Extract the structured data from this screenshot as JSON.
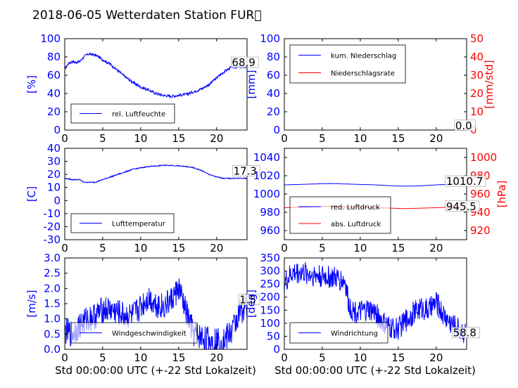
{
  "title": "2018-06-05 Wetterdaten Station FUR\u0000",
  "xlabel": "Std 00:00:00 UTC (+-22 Std Lokalzeit)",
  "colors": {
    "primary": "#0000ff",
    "secondary": "#ff0000"
  },
  "chart_data": [
    {
      "id": "humidity",
      "type": "line",
      "xlim": [
        0,
        24
      ],
      "ylim": [
        0,
        100
      ],
      "xticks": [
        0,
        5,
        10,
        15,
        20
      ],
      "yticks": [
        0,
        20,
        40,
        60,
        80,
        100
      ],
      "ylabel": "[%]",
      "legend_position": "lower-left",
      "series": [
        {
          "name": "rel. Luftfeuchte",
          "color": "#0000ff",
          "noise": 1.5,
          "x": [
            0,
            0.5,
            1,
            1.5,
            2,
            2.5,
            3,
            3.5,
            4,
            4.5,
            5,
            6,
            7,
            8,
            9,
            10,
            11,
            12,
            13,
            14,
            15,
            16,
            17,
            18,
            19,
            20,
            21,
            22,
            23,
            24
          ],
          "y": [
            67,
            73,
            75,
            74,
            75,
            80,
            83,
            83,
            82,
            80,
            77,
            72,
            65,
            58,
            52,
            47,
            44,
            40,
            38,
            37,
            38,
            39,
            42,
            45,
            50,
            57,
            64,
            69,
            69,
            69
          ]
        }
      ],
      "annotation": {
        "x": 22,
        "text": "68,9"
      }
    },
    {
      "id": "precipitation",
      "type": "line",
      "xlim": [
        0,
        24
      ],
      "ylim": [
        0,
        100
      ],
      "xticks": [
        0,
        5,
        10,
        15,
        20
      ],
      "yticks": [
        0,
        20,
        40,
        60,
        80,
        100
      ],
      "ylabel": "[mm]",
      "y2lim": [
        0,
        50
      ],
      "y2ticks": [
        0,
        10,
        20,
        30,
        40,
        50
      ],
      "y2label": "[mm/std]",
      "legend_position": "upper-left",
      "series": [
        {
          "name": "kum. Niederschlag",
          "color": "#0000ff",
          "axis": "left",
          "noise": 0,
          "x": [
            0,
            24
          ],
          "y": [
            0,
            0
          ]
        },
        {
          "name": "Niederschlagsrate",
          "color": "#ff0000",
          "axis": "right",
          "noise": 0,
          "x": [
            0,
            24
          ],
          "y": [
            0,
            0
          ]
        }
      ],
      "annotation": {
        "x": 22.5,
        "text": "0.0"
      }
    },
    {
      "id": "temperature",
      "type": "line",
      "xlim": [
        0,
        24
      ],
      "ylim": [
        -30,
        40
      ],
      "xticks": [
        0,
        5,
        10,
        15,
        20
      ],
      "yticks": [
        -30,
        -20,
        -10,
        0,
        10,
        20,
        30,
        40
      ],
      "ylabel": "[C]",
      "legend_position": "lower-left",
      "series": [
        {
          "name": "Lufttemperatur",
          "color": "#0000ff",
          "noise": 0.4,
          "x": [
            0,
            1,
            2,
            2.5,
            3,
            4,
            5,
            6,
            7,
            8,
            9,
            10,
            11,
            12,
            13,
            14,
            15,
            16,
            17,
            18,
            19,
            20,
            21,
            22,
            23,
            24
          ],
          "y": [
            17,
            16,
            16,
            14,
            14,
            14,
            16,
            18,
            20,
            22,
            24,
            25,
            26,
            26.5,
            27,
            27,
            26.5,
            26,
            25,
            23,
            20,
            18,
            17,
            17,
            17,
            17
          ]
        }
      ],
      "annotation": {
        "x": 22.2,
        "text": "17.3"
      }
    },
    {
      "id": "pressure",
      "type": "line",
      "xlim": [
        0,
        24
      ],
      "ylim": [
        950,
        1050
      ],
      "xticks": [
        0,
        5,
        10,
        15,
        20
      ],
      "yticks": [
        960,
        980,
        1000,
        1020,
        1040
      ],
      "ylabel": "",
      "y2lim": [
        910,
        1010
      ],
      "y2ticks": [
        920,
        940,
        960,
        980,
        1000
      ],
      "y2label": "[hPa]",
      "legend_position": "lower-left",
      "series": [
        {
          "name": "red. Luftdruck",
          "color": "#0000ff",
          "axis": "left",
          "noise": 0,
          "x": [
            0,
            2,
            4,
            6,
            8,
            10,
            12,
            14,
            16,
            18,
            20,
            22,
            24
          ],
          "y": [
            1010,
            1010.5,
            1011,
            1011.5,
            1011,
            1010.5,
            1010,
            1009,
            1008.5,
            1009,
            1010,
            1010.7,
            1010.7
          ]
        },
        {
          "name": "abs. Luftdruck",
          "color": "#ff0000",
          "axis": "right",
          "noise": 0,
          "x": [
            0,
            2,
            4,
            6,
            8,
            10,
            12,
            14,
            16,
            18,
            20,
            22,
            24
          ],
          "y": [
            945,
            945.5,
            946,
            946.5,
            946,
            945.5,
            945,
            944.5,
            944,
            944.5,
            945,
            945.5,
            945.5
          ]
        }
      ],
      "annotation_left": {
        "x": 21.3,
        "text": "1010.7"
      },
      "annotation_right": {
        "x": 21.3,
        "text": "945.5"
      }
    },
    {
      "id": "windspeed",
      "type": "line",
      "xlim": [
        0,
        24
      ],
      "ylim": [
        0,
        3.0
      ],
      "xticks": [
        0,
        5,
        10,
        15,
        20
      ],
      "yticks": [
        0.0,
        0.5,
        1.0,
        1.5,
        2.0,
        2.5,
        3.0
      ],
      "ylabel": "[m/s]",
      "legend_position": "lower-left",
      "series": [
        {
          "name": "Windgeschwindigkeit",
          "color": "#0000ff",
          "noise": 0.45,
          "x": [
            0,
            1,
            2,
            3,
            4,
            5,
            6,
            7,
            8,
            9,
            10,
            11,
            12,
            13,
            14,
            15,
            16,
            17,
            18,
            19,
            20,
            21,
            22,
            23,
            24
          ],
          "y": [
            0.6,
            0.5,
            0.8,
            1.0,
            1.1,
            1.3,
            1.3,
            1.2,
            1.1,
            1.1,
            1.4,
            1.7,
            1.5,
            1.4,
            1.6,
            2.0,
            1.2,
            0.5,
            0.4,
            0.3,
            0.3,
            0.3,
            0.6,
            1.2,
            1.5
          ]
        }
      ],
      "annotation": {
        "x": 23,
        "text": "1.5"
      }
    },
    {
      "id": "winddirection",
      "type": "line",
      "xlim": [
        0,
        24
      ],
      "ylim": [
        0,
        350
      ],
      "xticks": [
        0,
        5,
        10,
        15,
        20
      ],
      "yticks": [
        0,
        50,
        100,
        150,
        200,
        250,
        300,
        350
      ],
      "ylabel": "[deg]",
      "legend_position": "lower-left",
      "series": [
        {
          "name": "Windrichtung",
          "color": "#0000ff",
          "noise": 45,
          "x": [
            0,
            1,
            2,
            3,
            4,
            5,
            6,
            7,
            8,
            8.5,
            9,
            10,
            11,
            12,
            13,
            14,
            15,
            16,
            17,
            18,
            19,
            20,
            21,
            22,
            23,
            24
          ],
          "y": [
            250,
            290,
            295,
            290,
            285,
            280,
            275,
            270,
            260,
            170,
            150,
            140,
            150,
            140,
            100,
            80,
            80,
            110,
            140,
            160,
            150,
            180,
            130,
            100,
            80,
            60
          ]
        }
      ],
      "annotation": {
        "x": 22.2,
        "text": "58.8"
      }
    }
  ]
}
